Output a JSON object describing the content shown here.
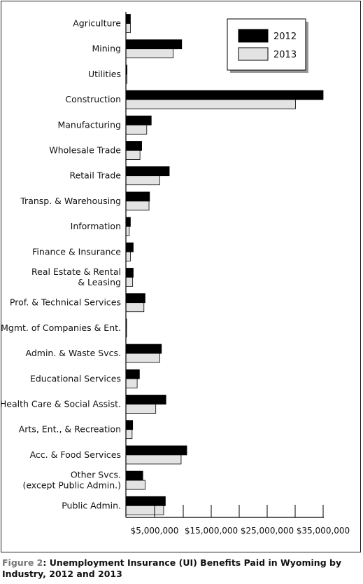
{
  "caption": {
    "figure_label": "Figure 2",
    "text": ": Unemployment Insurance (UI) Benefits Paid in Wyoming by Industry, 2012 and 2013"
  },
  "colors": {
    "2012": "#000000",
    "2013": "#e3e3e3"
  },
  "chart_data": {
    "type": "bar",
    "orientation": "horizontal",
    "title": "",
    "xlabel": "",
    "ylabel": "",
    "xlim": [
      0,
      35000000
    ],
    "x_ticks": [
      "$5,000,000",
      "$15,000,000",
      "$25,000,000",
      "$35,000,000"
    ],
    "legend_position": "top-right",
    "grid": false,
    "categories": [
      [
        "Agriculture"
      ],
      [
        "Mining"
      ],
      [
        "Utilities"
      ],
      [
        "Construction"
      ],
      [
        "Manufacturing"
      ],
      [
        "Wholesale Trade"
      ],
      [
        "Retail Trade"
      ],
      [
        "Transp. & Warehousing"
      ],
      [
        "Information"
      ],
      [
        "Finance & Insurance"
      ],
      [
        "Real Estate & Rental",
        "& Leasing"
      ],
      [
        "Prof. & Technical Services"
      ],
      [
        "Mgmt. of Companies & Ent."
      ],
      [
        "Admin. & Waste Svcs."
      ],
      [
        "Educational Services"
      ],
      [
        "Health Care & Social Assist."
      ],
      [
        "Arts, Ent., & Recreation"
      ],
      [
        "Acc. & Food Services"
      ],
      [
        "Other Svcs.",
        "(except Public Admin.)"
      ],
      [
        "Public Admin."
      ]
    ],
    "series": [
      {
        "name": "2012",
        "values": [
          800000,
          9900000,
          200000,
          35000000,
          4500000,
          2800000,
          7700000,
          4200000,
          800000,
          1300000,
          1300000,
          3400000,
          100000,
          6300000,
          2400000,
          7100000,
          1200000,
          10800000,
          3000000,
          7000000
        ]
      },
      {
        "name": "2013",
        "values": [
          800000,
          8400000,
          200000,
          30100000,
          3700000,
          2500000,
          6000000,
          4100000,
          600000,
          800000,
          1200000,
          3200000,
          100000,
          6000000,
          2000000,
          5300000,
          1100000,
          9800000,
          3400000,
          6700000
        ]
      }
    ]
  }
}
